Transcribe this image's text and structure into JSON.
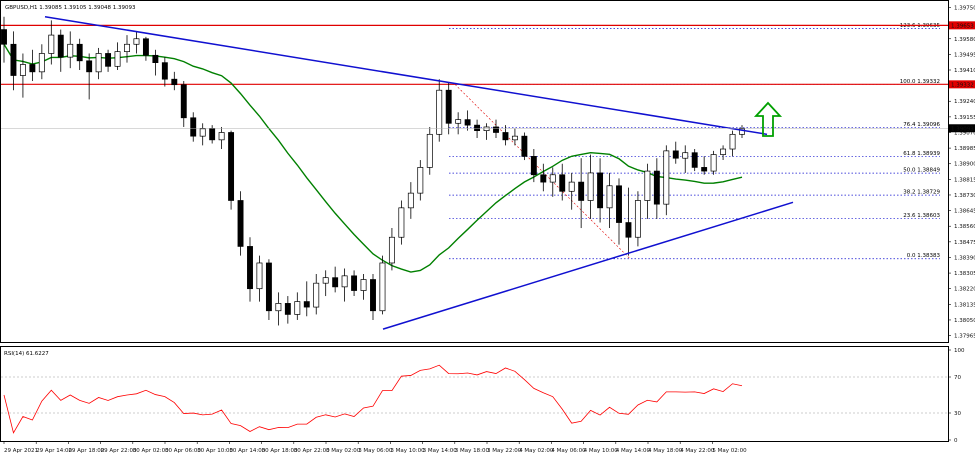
{
  "header": {
    "symbol_info": "GBPUSD,H1  1.39085 1.39105 1.39048 1.39093"
  },
  "indicator": {
    "label": "RSI(14) 61.6227",
    "levels": [
      100,
      70,
      30,
      0
    ]
  },
  "colors": {
    "background": "#ffffff",
    "candle": "#000000",
    "bull_fill": "#ffffff",
    "resistance": "#e00000",
    "trendline": "#1010d0",
    "ma": "#008000",
    "fib": "#1010d0",
    "rsi": "#ff0000",
    "arrow": "#00a000",
    "current_price_bg": "#000000"
  },
  "chart_data": {
    "type": "candlestick",
    "symbol": "GBPUSD",
    "timeframe": "H1",
    "current_price": "1.39093",
    "ylim": [
      1.3793,
      1.3978
    ],
    "y_ticks": [
      "1.39750",
      "1.39580",
      "1.39495",
      "1.39410",
      "1.39325",
      "1.39240",
      "1.39155",
      "1.39070",
      "1.38985",
      "1.38900",
      "1.38815",
      "1.38730",
      "1.38645",
      "1.38560",
      "1.38475",
      "1.38390",
      "1.38305",
      "1.38220",
      "1.38135",
      "1.38050",
      "1.37965"
    ],
    "x_ticks": [
      "29 Apr 2021",
      "29 Apr 14:00",
      "29 Apr 18:00",
      "29 Apr 22:00",
      "30 Apr 02:00",
      "30 Apr 06:00",
      "30 Apr 10:00",
      "30 Apr 14:00",
      "30 Apr 18:00",
      "30 Apr 22:00",
      "3 May 02:00",
      "3 May 06:00",
      "3 May 10:00",
      "3 May 14:00",
      "3 May 18:00",
      "3 May 22:00",
      "4 May 02:00",
      "4 May 06:00",
      "4 May 10:00",
      "4 May 14:00",
      "4 May 18:00",
      "4 May 22:00",
      "5 May 02:00"
    ],
    "horizontal_levels": [
      {
        "price": 1.39653,
        "label": "1.39653"
      },
      {
        "price": 1.39332,
        "label": "1.39332"
      }
    ],
    "fib_levels": [
      {
        "label": "123.6  1.39635",
        "price": 1.39635
      },
      {
        "label": "100.0  1.39332",
        "price": 1.39332
      },
      {
        "label": "76.4  1.39096",
        "price": 1.39096
      },
      {
        "label": "61.8  1.38939",
        "price": 1.38939
      },
      {
        "label": "50.0  1.38849",
        "price": 1.38849
      },
      {
        "label": "38.2  1.38729",
        "price": 1.38729
      },
      {
        "label": "23.6  1.38603",
        "price": 1.38603
      },
      {
        "label": "0.0  1.38383",
        "price": 1.38383
      }
    ],
    "candles": [
      [
        1.3963,
        1.397,
        1.3945,
        1.3955
      ],
      [
        1.3955,
        1.3962,
        1.393,
        1.3938
      ],
      [
        1.3938,
        1.395,
        1.3926,
        1.3944
      ],
      [
        1.3944,
        1.3952,
        1.3935,
        1.394
      ],
      [
        1.394,
        1.3955,
        1.3936,
        1.395
      ],
      [
        1.395,
        1.3968,
        1.3944,
        1.396
      ],
      [
        1.396,
        1.3963,
        1.394,
        1.3948
      ],
      [
        1.3948,
        1.3962,
        1.3942,
        1.3955
      ],
      [
        1.3955,
        1.3958,
        1.3941,
        1.3946
      ],
      [
        1.3946,
        1.395,
        1.3925,
        1.394
      ],
      [
        1.394,
        1.3953,
        1.3936,
        1.395
      ],
      [
        1.395,
        1.3952,
        1.394,
        1.3943
      ],
      [
        1.3943,
        1.3956,
        1.3941,
        1.3951
      ],
      [
        1.3951,
        1.396,
        1.3945,
        1.3955
      ],
      [
        1.3955,
        1.3962,
        1.395,
        1.3958
      ],
      [
        1.3958,
        1.3959,
        1.3946,
        1.3949
      ],
      [
        1.3949,
        1.3952,
        1.3938,
        1.3945
      ],
      [
        1.3945,
        1.3948,
        1.3932,
        1.3936
      ],
      [
        1.3936,
        1.394,
        1.393,
        1.3933
      ],
      [
        1.3933,
        1.3935,
        1.391,
        1.3915
      ],
      [
        1.3915,
        1.3918,
        1.3902,
        1.3905
      ],
      [
        1.3905,
        1.3912,
        1.39,
        1.3909
      ],
      [
        1.3909,
        1.3911,
        1.3901,
        1.3903
      ],
      [
        1.3903,
        1.391,
        1.3898,
        1.3907
      ],
      [
        1.3907,
        1.3908,
        1.3865,
        1.387
      ],
      [
        1.387,
        1.3875,
        1.384,
        1.3845
      ],
      [
        1.3845,
        1.385,
        1.3815,
        1.3822
      ],
      [
        1.3822,
        1.384,
        1.3815,
        1.3836
      ],
      [
        1.3836,
        1.3838,
        1.3805,
        1.381
      ],
      [
        1.381,
        1.382,
        1.3802,
        1.3814
      ],
      [
        1.3814,
        1.3818,
        1.3803,
        1.3808
      ],
      [
        1.3808,
        1.382,
        1.3805,
        1.3815
      ],
      [
        1.3815,
        1.3826,
        1.3807,
        1.3812
      ],
      [
        1.3812,
        1.383,
        1.3808,
        1.3825
      ],
      [
        1.3825,
        1.3832,
        1.3818,
        1.3828
      ],
      [
        1.3828,
        1.3834,
        1.382,
        1.3823
      ],
      [
        1.3823,
        1.3833,
        1.3815,
        1.3829
      ],
      [
        1.3829,
        1.3832,
        1.3818,
        1.3821
      ],
      [
        1.3821,
        1.383,
        1.3816,
        1.3827
      ],
      [
        1.3827,
        1.383,
        1.3805,
        1.381
      ],
      [
        1.381,
        1.384,
        1.3808,
        1.3836
      ],
      [
        1.3836,
        1.3855,
        1.3832,
        1.385
      ],
      [
        1.385,
        1.387,
        1.3846,
        1.3866
      ],
      [
        1.3866,
        1.388,
        1.386,
        1.3874
      ],
      [
        1.3874,
        1.3892,
        1.387,
        1.3888
      ],
      [
        1.3888,
        1.391,
        1.3884,
        1.3906
      ],
      [
        1.3906,
        1.3936,
        1.3902,
        1.393
      ],
      [
        1.393,
        1.3934,
        1.3906,
        1.3912
      ],
      [
        1.3912,
        1.3918,
        1.3906,
        1.3914
      ],
      [
        1.3914,
        1.3919,
        1.3908,
        1.3911
      ],
      [
        1.3911,
        1.3914,
        1.3904,
        1.3908
      ],
      [
        1.3908,
        1.3912,
        1.3903,
        1.391
      ],
      [
        1.391,
        1.3914,
        1.3904,
        1.3907
      ],
      [
        1.3907,
        1.3911,
        1.39,
        1.3903
      ],
      [
        1.3903,
        1.3909,
        1.39,
        1.3905
      ],
      [
        1.3905,
        1.3907,
        1.3892,
        1.3894
      ],
      [
        1.3894,
        1.3898,
        1.388,
        1.3884
      ],
      [
        1.3884,
        1.389,
        1.3875,
        1.388
      ],
      [
        1.388,
        1.3888,
        1.3872,
        1.3884
      ],
      [
        1.3884,
        1.389,
        1.387,
        1.3875
      ],
      [
        1.3875,
        1.3885,
        1.3865,
        1.388
      ],
      [
        1.388,
        1.3893,
        1.3855,
        1.387
      ],
      [
        1.387,
        1.3895,
        1.386,
        1.3885
      ],
      [
        1.3885,
        1.3893,
        1.3858,
        1.3866
      ],
      [
        1.3866,
        1.3885,
        1.3855,
        1.3878
      ],
      [
        1.3878,
        1.3882,
        1.3846,
        1.3858
      ],
      [
        1.3858,
        1.3877,
        1.384,
        1.385
      ],
      [
        1.385,
        1.3875,
        1.3845,
        1.387
      ],
      [
        1.387,
        1.389,
        1.386,
        1.3886
      ],
      [
        1.3886,
        1.3893,
        1.386,
        1.3868
      ],
      [
        1.3868,
        1.39,
        1.3862,
        1.3897
      ],
      [
        1.3897,
        1.3902,
        1.389,
        1.3893
      ],
      [
        1.3893,
        1.39,
        1.3885,
        1.3896
      ],
      [
        1.3896,
        1.3898,
        1.3886,
        1.3888
      ],
      [
        1.3888,
        1.3894,
        1.3884,
        1.3886
      ],
      [
        1.3886,
        1.3897,
        1.3884,
        1.3895
      ],
      [
        1.3895,
        1.39,
        1.3892,
        1.3898
      ],
      [
        1.3898,
        1.3908,
        1.3894,
        1.3906
      ],
      [
        1.3906,
        1.3911,
        1.3904,
        1.3909
      ]
    ]
  }
}
